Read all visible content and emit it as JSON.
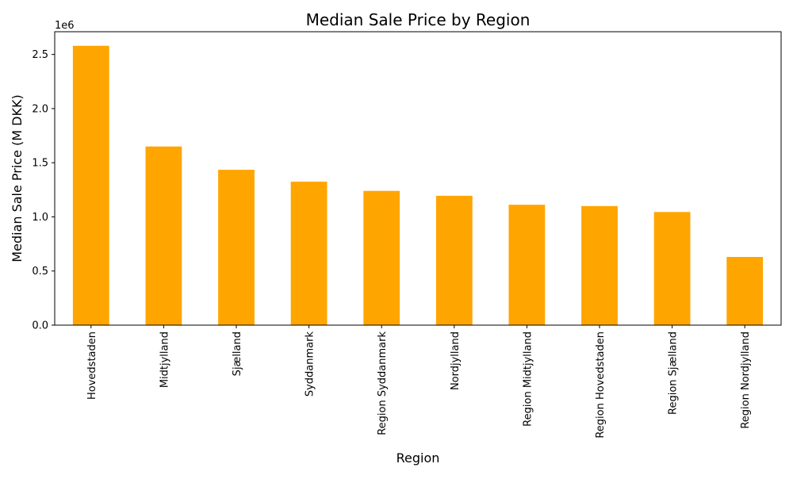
{
  "chart_data": {
    "type": "bar",
    "title": "Median Sale Price by Region",
    "xlabel": "Region",
    "ylabel": "Median Sale Price (M DKK)",
    "offset_label": "1e6",
    "categories": [
      "Hovedstaden",
      "Midtjylland",
      "Sjælland",
      "Syddanmark",
      "Region Syddanmark",
      "Nordjylland",
      "Region Midtjylland",
      "Region Hovedstaden",
      "Region Sjælland",
      "Region Nordjylland"
    ],
    "values": [
      2580000,
      1650000,
      1435000,
      1325000,
      1240000,
      1195000,
      1112000,
      1100000,
      1045000,
      630000
    ],
    "ylim": [
      0,
      2710000
    ],
    "yticks": [
      0,
      500000,
      1000000,
      1500000,
      2000000,
      2500000
    ],
    "ytick_labels": [
      "0.0",
      "0.5",
      "1.0",
      "1.5",
      "2.0",
      "2.5"
    ],
    "grid": false,
    "legend": "none",
    "bar_color": "#FFA500"
  }
}
